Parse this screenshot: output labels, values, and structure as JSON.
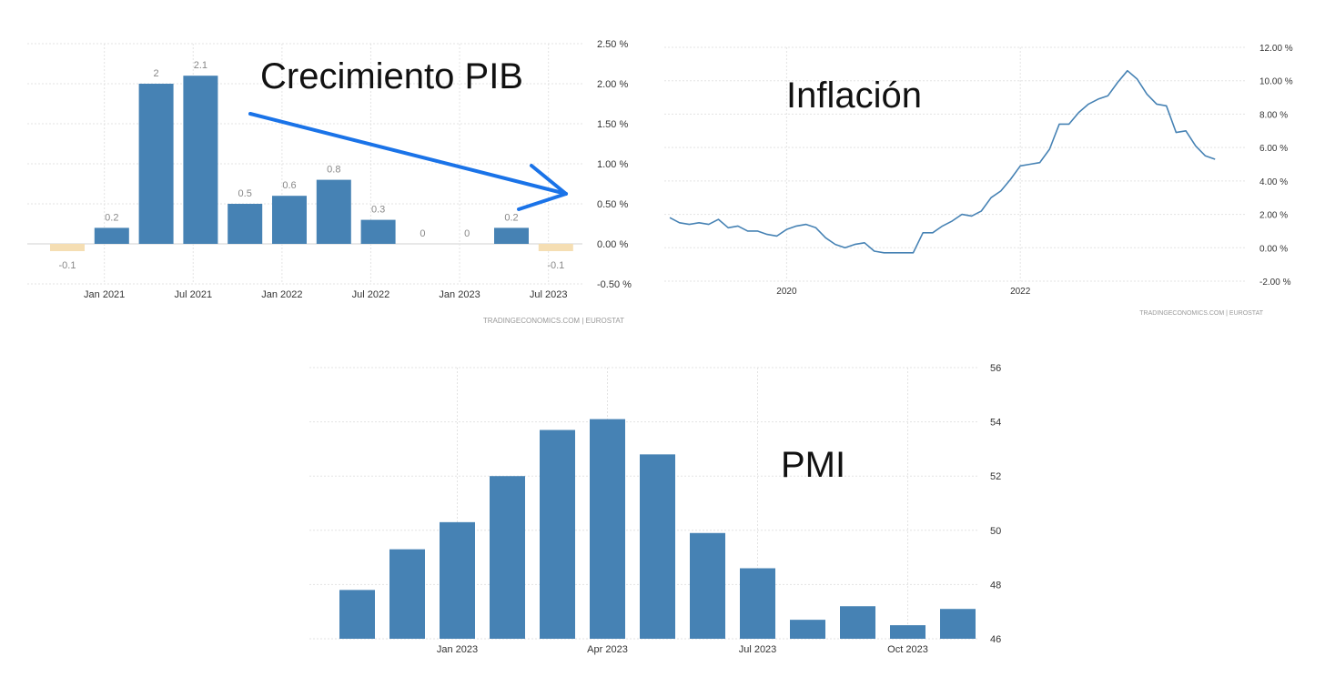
{
  "chart_data": [
    {
      "type": "bar",
      "id": "gdp",
      "title": "Crecimiento PIB",
      "source": "TRADINGECONOMICS.COM  |  EUROSTAT",
      "x": [
        "2020-12",
        "2021-03",
        "2021-06",
        "2021-09",
        "2021-12",
        "2022-03",
        "2022-06",
        "2022-09",
        "2022-12",
        "2023-03",
        "2023-06",
        "2023-09"
      ],
      "values": [
        -0.1,
        0.2,
        2,
        2.1,
        0.5,
        0.6,
        0.8,
        0.3,
        0,
        0,
        0.2,
        -0.1
      ],
      "data_labels": [
        "-0.1",
        "0.2",
        "2",
        "2.1",
        "0.5",
        "0.6",
        "0.8",
        "0.3",
        "0",
        "0",
        "0.2",
        "-0.1"
      ],
      "x_ticks": [
        "Jan 2021",
        "Jul 2021",
        "Jan 2022",
        "Jul 2022",
        "Jan 2023",
        "Jul 2023"
      ],
      "y_ticks": [
        "2.50 %",
        "2.00 %",
        "1.50 %",
        "1.00 %",
        "0.50 %",
        "0.00 %",
        "-0.50 %"
      ],
      "ylim": [
        -0.5,
        2.5
      ],
      "grid": true,
      "colors": {
        "positive": "#4682b4",
        "negative": "#f5deb3",
        "arrow": "#1a73e8"
      }
    },
    {
      "type": "line",
      "id": "inflation",
      "title": "Inflación",
      "source": "TRADINGECONOMICS.COM  |  EUROSTAT",
      "x": [
        "2019-01",
        "2019-02",
        "2019-03",
        "2019-04",
        "2019-05",
        "2019-06",
        "2019-07",
        "2019-08",
        "2019-09",
        "2019-10",
        "2019-11",
        "2019-12",
        "2020-01",
        "2020-02",
        "2020-03",
        "2020-04",
        "2020-05",
        "2020-06",
        "2020-07",
        "2020-08",
        "2020-09",
        "2020-10",
        "2020-11",
        "2020-12",
        "2021-01",
        "2021-02",
        "2021-03",
        "2021-04",
        "2021-05",
        "2021-06",
        "2021-07",
        "2021-08",
        "2021-09",
        "2021-10",
        "2021-11",
        "2021-12",
        "2022-01",
        "2022-02",
        "2022-03",
        "2022-04",
        "2022-05",
        "2022-06",
        "2022-07",
        "2022-08",
        "2022-09",
        "2022-10",
        "2022-11",
        "2022-12",
        "2023-01",
        "2023-02",
        "2023-03",
        "2023-04",
        "2023-05",
        "2023-06",
        "2023-07",
        "2023-08",
        "2023-09"
      ],
      "values": [
        1.8,
        1.5,
        1.4,
        1.5,
        1.4,
        1.7,
        1.2,
        1.3,
        1.0,
        1.0,
        0.8,
        0.7,
        1.1,
        1.3,
        1.4,
        1.2,
        0.6,
        0.2,
        0.0,
        0.2,
        0.3,
        -0.2,
        -0.3,
        -0.3,
        -0.3,
        -0.3,
        0.9,
        0.9,
        1.3,
        1.6,
        2.0,
        1.9,
        2.2,
        3.0,
        3.4,
        4.1,
        4.9,
        5.0,
        5.1,
        5.9,
        7.4,
        7.4,
        8.1,
        8.6,
        8.9,
        9.1,
        9.9,
        10.6,
        10.1,
        9.2,
        8.6,
        8.5,
        6.9,
        7.0,
        6.1,
        5.5,
        5.3
      ],
      "x_ticks": [
        "2020",
        "2022"
      ],
      "y_ticks": [
        "12.00 %",
        "10.00 %",
        "8.00 %",
        "6.00 %",
        "4.00 %",
        "2.00 %",
        "0.00 %",
        "-2.00 %"
      ],
      "ylim": [
        -2,
        12
      ],
      "grid": true,
      "colors": {
        "line": "#4682b4"
      }
    },
    {
      "type": "bar",
      "id": "pmi",
      "title": "PMI",
      "x": [
        "2022-11",
        "2022-12",
        "2023-01",
        "2023-02",
        "2023-03",
        "2023-04",
        "2023-05",
        "2023-06",
        "2023-07",
        "2023-08",
        "2023-09",
        "2023-10",
        "2023-11"
      ],
      "values": [
        47.8,
        49.3,
        50.3,
        52.0,
        53.7,
        54.1,
        52.8,
        49.9,
        48.6,
        46.7,
        47.2,
        46.5,
        47.1
      ],
      "x_ticks": [
        "Jan 2023",
        "Apr 2023",
        "Jul 2023",
        "Oct 2023"
      ],
      "y_ticks": [
        "56",
        "54",
        "52",
        "50",
        "48",
        "46"
      ],
      "ylim": [
        46,
        56
      ],
      "grid": true,
      "colors": {
        "bar": "#4682b4"
      }
    }
  ]
}
